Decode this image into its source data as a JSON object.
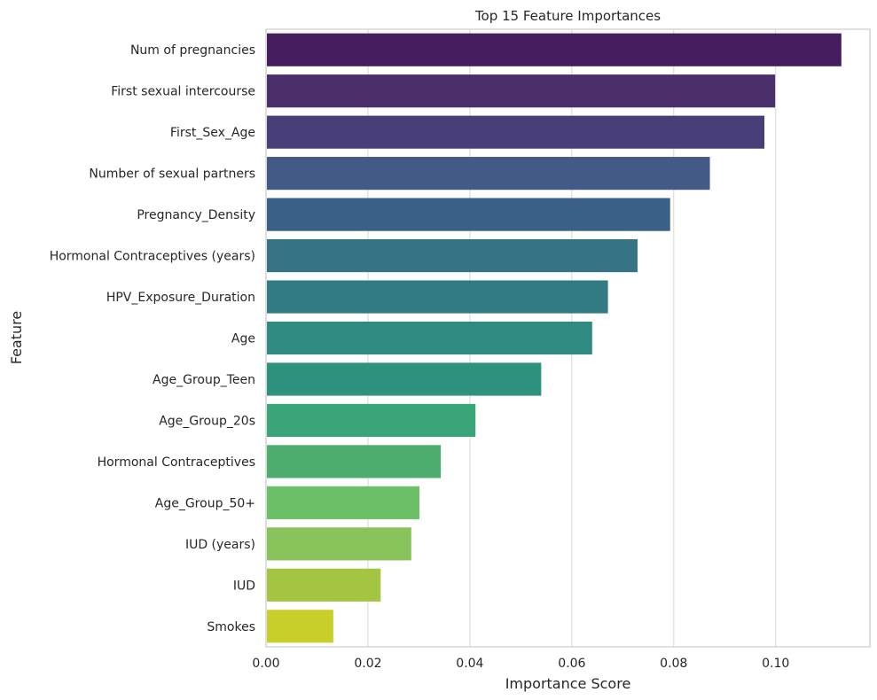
{
  "chart_data": {
    "type": "bar",
    "orientation": "horizontal",
    "title": "Top 15 Feature Importances",
    "xlabel": "Importance Score",
    "ylabel": "Feature",
    "xlim": [
      0,
      0.1185
    ],
    "xticks": [
      "0.00",
      "0.02",
      "0.04",
      "0.06",
      "0.08",
      "0.10"
    ],
    "grid": true,
    "categories": [
      "Num of pregnancies",
      "First sexual intercourse",
      "First_Sex_Age",
      "Number of sexual partners",
      "Pregnancy_Density",
      "Hormonal Contraceptives (years)",
      "HPV_Exposure_Duration",
      "Age",
      "Age_Group_Teen",
      "Age_Group_20s",
      "Hormonal Contraceptives",
      "Age_Group_50+",
      "IUD (years)",
      "IUD",
      "Smokes"
    ],
    "values": [
      0.1129,
      0.0999,
      0.0978,
      0.0871,
      0.0793,
      0.0729,
      0.0671,
      0.064,
      0.054,
      0.0411,
      0.0343,
      0.0301,
      0.0285,
      0.0225,
      0.0132
    ],
    "colors": [
      "#461e5f",
      "#4a2f6b",
      "#483f78",
      "#425a85",
      "#3b6087",
      "#367485",
      "#337b84",
      "#2f8a82",
      "#2e917e",
      "#3aa579",
      "#4dad6f",
      "#6bbf67",
      "#87c25a",
      "#a3c542",
      "#c9cf2a"
    ]
  }
}
